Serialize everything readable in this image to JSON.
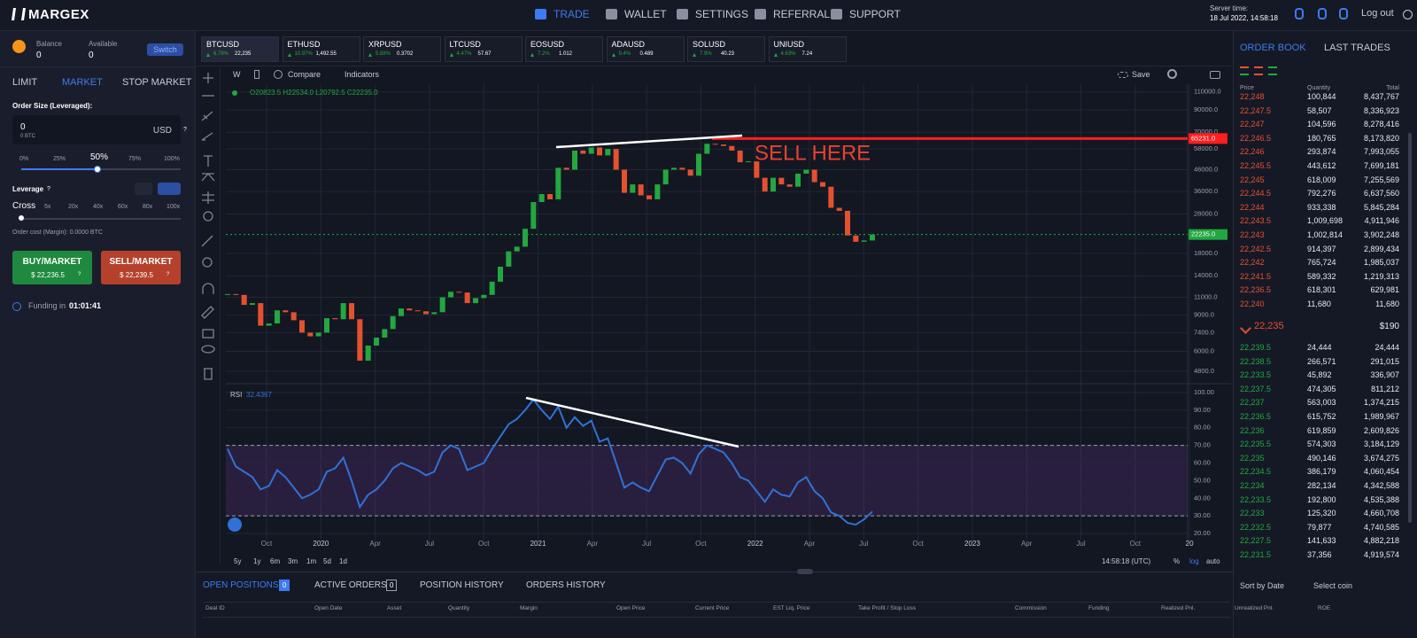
{
  "nav": {
    "brand": "MARGEX",
    "items": [
      "TRADE",
      "WALLET",
      "SETTINGS",
      "REFERRAL",
      "SUPPORT"
    ],
    "server_time_label": "Server time:",
    "server_time": "18 Jul 2022, 14:58:18",
    "logout": "Log out"
  },
  "account": {
    "balance_label": "Balance",
    "balance": "0",
    "available_label": "Available",
    "available": "0",
    "switch": "Switch"
  },
  "order_form": {
    "tabs": [
      "LIMIT",
      "MARKET",
      "STOP MARKET"
    ],
    "size_label": "Order Size (Leveraged):",
    "size": "0",
    "size_btc": "0 BTC",
    "currency": "USD",
    "help": "?",
    "percent_marks": [
      "0%",
      "25%",
      "50%",
      "75%",
      "100%"
    ],
    "leverage_label": "Leverage",
    "leverage_help": "?",
    "margin_mode": "Cross",
    "leverage_marks": [
      "5x",
      "20x",
      "40x",
      "60x",
      "80x",
      "100x"
    ],
    "order_cost": "Order cost (Margin): 0.0000 BTC",
    "buy": {
      "label": "BUY/MARKET",
      "price": "$ 22,236.5",
      "help": "?"
    },
    "sell": {
      "label": "SELL/MARKET",
      "price": "$ 22,239.5",
      "help": "?"
    },
    "funding_label": "Funding in",
    "funding_time": "01:01:41"
  },
  "tickers": [
    {
      "symbol": "BTCUSD",
      "change": "6.78%",
      "price": "22,235"
    },
    {
      "symbol": "ETHUSD",
      "change": "10.97%",
      "price": "1,492.55"
    },
    {
      "symbol": "XRPUSD",
      "change": "5.88%",
      "price": "0.3702"
    },
    {
      "symbol": "LTCUSD",
      "change": "4.47%",
      "price": "57.67"
    },
    {
      "symbol": "EOSUSD",
      "change": "7.2%",
      "price": "1.012"
    },
    {
      "symbol": "ADAUSD",
      "change": "9.4%",
      "price": "0.489"
    },
    {
      "symbol": "SOLUSD",
      "change": "7.9%",
      "price": "40.23"
    },
    {
      "symbol": "UNIUSD",
      "change": "4.63%",
      "price": "7.24"
    }
  ],
  "toolbar": {
    "interval": "W",
    "compare": "Compare",
    "indicators": "Indicators",
    "save": "Save"
  },
  "chart": {
    "type": "candlestick",
    "ohlc": "O20823.5 H22534.0 L20792.5 C22235.0",
    "annotation": "SELL HERE",
    "x_labels": [
      "Oct",
      "2020",
      "Apr",
      "Jul",
      "Oct",
      "2021",
      "Apr",
      "Jul",
      "Oct",
      "2022",
      "Apr",
      "Jul",
      "Oct",
      "2023",
      "Apr",
      "Jul",
      "Oct",
      "20"
    ],
    "closes": [
      11400,
      11300,
      10100,
      10300,
      8000,
      8200,
      9500,
      9300,
      8500,
      7400,
      7100,
      7400,
      8700,
      8600,
      10300,
      8600,
      5400,
      6400,
      7000,
      7700,
      8900,
      9700,
      9500,
      9400,
      9100,
      9300,
      11000,
      11700,
      11600,
      10300,
      10900,
      11300,
      13100,
      15500,
      18400,
      19400,
      23700,
      32000,
      35000,
      33000,
      47000,
      46000,
      57000,
      55000,
      59000,
      54000,
      58000,
      46000,
      35500,
      39000,
      34500,
      33000,
      39000,
      46000,
      47000,
      46000,
      43000,
      55000,
      61500,
      61000,
      60000,
      57000,
      50000,
      50500,
      42000,
      36000,
      42000,
      39000,
      38000,
      44000,
      46000,
      40000,
      38000,
      30000,
      29000,
      22000,
      20500,
      20800,
      22235
    ],
    "log_scale": true,
    "ylim": [
      4300,
      120000
    ],
    "yticks": [
      {
        "value": 110000,
        "label": "110000.0"
      },
      {
        "value": 90000,
        "label": "90000.0"
      },
      {
        "value": 70000,
        "label": "70000.0"
      },
      {
        "value": 58000,
        "label": "58000.0"
      },
      {
        "value": 46000,
        "label": "46000.0"
      },
      {
        "value": 36000,
        "label": "36000.0"
      },
      {
        "value": 28000,
        "label": "28000.0"
      },
      {
        "value": 18000,
        "label": "18000.0"
      },
      {
        "value": 14000,
        "label": "14000.0"
      },
      {
        "value": 11000,
        "label": "11000.0"
      },
      {
        "value": 9000,
        "label": "9000.0"
      },
      {
        "value": 7400,
        "label": "7400.0"
      },
      {
        "value": 6000,
        "label": "6000.0"
      },
      {
        "value": 4800,
        "label": "4800.0"
      }
    ],
    "grid": true,
    "sell_level": {
      "value": 65231,
      "label": "65231.0"
    },
    "last_price": {
      "value": 22235,
      "label": "22235.0"
    },
    "colors": {
      "up": "#22a83f",
      "down": "#e4512f",
      "sell": "#ff1f1f"
    },
    "rsi": {
      "label": "RSI",
      "value": 32.4367,
      "color": "#2f72d6",
      "values": [
        68,
        58,
        55,
        52,
        45,
        47,
        56,
        52,
        46,
        40,
        42,
        45,
        55,
        57,
        63,
        50,
        35,
        42,
        45,
        50,
        57,
        60,
        58,
        56,
        53,
        55,
        66,
        70,
        68,
        56,
        58,
        60,
        68,
        75,
        82,
        85,
        90,
        96,
        90,
        85,
        92,
        80,
        86,
        81,
        84,
        72,
        74,
        60,
        46,
        49,
        46,
        44,
        53,
        62,
        63,
        60,
        54,
        65,
        70,
        68,
        66,
        60,
        52,
        50,
        44,
        38,
        45,
        42,
        41,
        49,
        52,
        44,
        40,
        32,
        30,
        26,
        25,
        28,
        32.4367
      ],
      "ylim": [
        16,
        104
      ],
      "yticks": [
        {
          "value": 100,
          "label": "100.00"
        },
        {
          "value": 90,
          "label": "90.00"
        },
        {
          "value": 80,
          "label": "80.00"
        },
        {
          "value": 70,
          "label": "70.00"
        },
        {
          "value": 60,
          "label": "60.00"
        },
        {
          "value": 50,
          "label": "50.00"
        },
        {
          "value": 40,
          "label": "40.00"
        },
        {
          "value": 30,
          "label": "30.00"
        },
        {
          "value": 20,
          "label": "20.00"
        }
      ],
      "band": [
        30,
        70
      ]
    }
  },
  "chart_footer": {
    "ranges": [
      "5y",
      "1y",
      "6m",
      "3m",
      "1m",
      "5d",
      "1d"
    ],
    "clock": "14:58:18 (UTC)",
    "options": [
      "%",
      "log",
      "auto"
    ]
  },
  "order_book": {
    "tabs": [
      "ORDER BOOK",
      "LAST TRADES"
    ],
    "columns": [
      "Price",
      "Quantity",
      "Total"
    ],
    "asks": [
      [
        "22,248",
        "100,844",
        "8,437,767"
      ],
      [
        "22,247.5",
        "58,507",
        "8,336,923"
      ],
      [
        "22,247",
        "104,596",
        "8,278,416"
      ],
      [
        "22,246.5",
        "180,765",
        "8,173,820"
      ],
      [
        "22,246",
        "293,874",
        "7,993,055"
      ],
      [
        "22,245.5",
        "443,612",
        "7,699,181"
      ],
      [
        "22,245",
        "618,009",
        "7,255,569"
      ],
      [
        "22,244.5",
        "792,276",
        "6,637,560"
      ],
      [
        "22,244",
        "933,338",
        "5,845,284"
      ],
      [
        "22,243.5",
        "1,009,698",
        "4,911,946"
      ],
      [
        "22,243",
        "1,002,814",
        "3,902,248"
      ],
      [
        "22,242.5",
        "914,397",
        "2,899,434"
      ],
      [
        "22,242",
        "765,724",
        "1,985,037"
      ],
      [
        "22,241.5",
        "589,332",
        "1,219,313"
      ],
      [
        "22,236.5",
        "618,301",
        "629,981"
      ],
      [
        "22,240",
        "11,680",
        "11,680"
      ]
    ],
    "last_price": "22,235",
    "last_value": "$190",
    "bids": [
      [
        "22,239.5",
        "24,444",
        "24,444"
      ],
      [
        "22,238.5",
        "266,571",
        "291,015"
      ],
      [
        "22,233.5",
        "45,892",
        "336,907"
      ],
      [
        "22,237.5",
        "474,305",
        "811,212"
      ],
      [
        "22,237",
        "563,003",
        "1,374,215"
      ],
      [
        "22,236.5",
        "615,752",
        "1,989,967"
      ],
      [
        "22,236",
        "619,859",
        "2,609,826"
      ],
      [
        "22,235.5",
        "574,303",
        "3,184,129"
      ],
      [
        "22,235",
        "490,146",
        "3,674,275"
      ],
      [
        "22,234.5",
        "386,179",
        "4,060,454"
      ],
      [
        "22,234",
        "282,134",
        "4,342,588"
      ],
      [
        "22,233.5",
        "192,800",
        "4,535,388"
      ],
      [
        "22,233",
        "125,320",
        "4,660,708"
      ],
      [
        "22,232.5",
        "79,877",
        "4,740,585"
      ],
      [
        "22,227.5",
        "141,633",
        "4,882,218"
      ],
      [
        "22,231.5",
        "37,356",
        "4,919,574"
      ]
    ]
  },
  "positions": {
    "tabs": [
      {
        "label": "OPEN POSITIONS",
        "count": "0"
      },
      {
        "label": "ACTIVE ORDERS",
        "count": "0"
      },
      {
        "label": "POSITION HISTORY"
      },
      {
        "label": "ORDERS HISTORY"
      }
    ],
    "sort": "Sort by Date",
    "coin": "Select coin",
    "columns": [
      "Deal ID",
      "Open Date",
      "Asset",
      "Quantity",
      "Margin",
      "Open Price",
      "Current Price",
      "EST Liq. Price",
      "Take Profit / Stop Loss",
      "Commission",
      "Funding",
      "Realized Pnl.",
      "Unrealized Pnl.",
      "ROE"
    ]
  }
}
